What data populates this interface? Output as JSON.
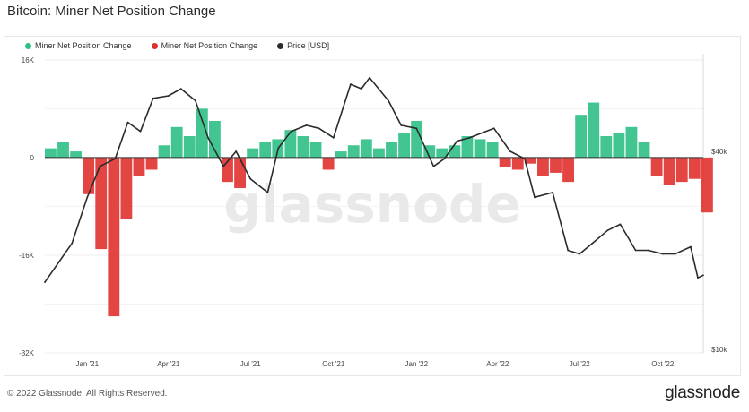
{
  "title": "Bitcoin: Miner Net Position Change",
  "footer": "© 2022 Glassnode. All Rights Reserved.",
  "brand": "glassnode",
  "watermark": "glassnode",
  "colors": {
    "positive": "#2fbf86",
    "negative": "#e0312f",
    "price": "#2b2b2b",
    "grid": "#ececec"
  },
  "legend": [
    {
      "label": "Miner Net Position Change",
      "color": "#2fbf86"
    },
    {
      "label": "Miner Net Position Change",
      "color": "#e0312f"
    },
    {
      "label": "Price [USD]",
      "color": "#2b2b2b"
    }
  ],
  "chart_data": {
    "type": "bar",
    "title": "Bitcoin: Miner Net Position Change",
    "y_left_ticks": [
      "16K",
      "0",
      "-16K",
      "-32K"
    ],
    "y_left_tick_values": [
      16000,
      0,
      -16000,
      -32000
    ],
    "y_left_range": [
      -32000,
      17000
    ],
    "y_right_ticks": [
      "$40k",
      "$10k"
    ],
    "y_right_tick_values": [
      40000,
      10000
    ],
    "y_right_scale": "log",
    "x_ticks": [
      "Jan '21",
      "Apr '21",
      "Jul '21",
      "Oct '21",
      "Jan '22",
      "Apr '22",
      "Jul '22",
      "Oct '22"
    ],
    "x_range": [
      "2020-11-15",
      "2022-11-15"
    ],
    "grid": true,
    "legend_placement": "top-left",
    "series": [
      {
        "name": "Miner Net Position Change",
        "type": "bar",
        "x": [
          "2020-11-15",
          "2020-11-29",
          "2020-12-13",
          "2020-12-27",
          "2021-01-10",
          "2021-01-24",
          "2021-02-07",
          "2021-02-21",
          "2021-03-07",
          "2021-03-21",
          "2021-04-04",
          "2021-04-18",
          "2021-05-02",
          "2021-05-16",
          "2021-05-30",
          "2021-06-13",
          "2021-06-27",
          "2021-07-11",
          "2021-07-25",
          "2021-08-08",
          "2021-08-22",
          "2021-09-05",
          "2021-09-19",
          "2021-10-03",
          "2021-10-17",
          "2021-10-31",
          "2021-11-14",
          "2021-11-28",
          "2021-12-12",
          "2021-12-26",
          "2022-01-09",
          "2022-01-23",
          "2022-02-06",
          "2022-02-20",
          "2022-03-06",
          "2022-03-20",
          "2022-04-03",
          "2022-04-17",
          "2022-05-01",
          "2022-05-15",
          "2022-05-29",
          "2022-06-12",
          "2022-06-26",
          "2022-07-10",
          "2022-07-24",
          "2022-08-07",
          "2022-08-21",
          "2022-09-04",
          "2022-09-18",
          "2022-10-02",
          "2022-10-16",
          "2022-10-30",
          "2022-11-13"
        ],
        "values": [
          1500,
          2500,
          1000,
          -6000,
          -15000,
          -26000,
          -10000,
          -3000,
          -2000,
          2000,
          5000,
          3500,
          8000,
          6000,
          -4000,
          -5000,
          1500,
          2500,
          3000,
          4500,
          3500,
          2500,
          -2000,
          1000,
          2000,
          3000,
          1500,
          2500,
          4000,
          6000,
          2000,
          1500,
          2000,
          3500,
          3000,
          2500,
          -1500,
          -2000,
          -1000,
          -3000,
          -2500,
          -4000,
          7000,
          9000,
          3500,
          4000,
          5000,
          2500,
          -3000,
          -4500,
          -4000,
          -3500,
          -9000
        ]
      },
      {
        "name": "Price [USD]",
        "type": "line",
        "x": [
          "2020-11-15",
          "2020-12-01",
          "2020-12-15",
          "2021-01-01",
          "2021-01-15",
          "2021-02-01",
          "2021-02-15",
          "2021-03-01",
          "2021-03-15",
          "2021-04-01",
          "2021-04-15",
          "2021-05-01",
          "2021-05-15",
          "2021-06-01",
          "2021-06-15",
          "2021-07-01",
          "2021-07-20",
          "2021-08-01",
          "2021-08-15",
          "2021-09-01",
          "2021-09-15",
          "2021-10-01",
          "2021-10-20",
          "2021-11-01",
          "2021-11-10",
          "2021-12-01",
          "2021-12-15",
          "2022-01-01",
          "2022-01-20",
          "2022-02-01",
          "2022-02-15",
          "2022-03-01",
          "2022-03-28",
          "2022-04-15",
          "2022-05-01",
          "2022-05-12",
          "2022-06-01",
          "2022-06-18",
          "2022-07-01",
          "2022-07-15",
          "2022-08-01",
          "2022-08-15",
          "2022-09-01",
          "2022-09-15",
          "2022-10-01",
          "2022-10-15",
          "2022-11-01",
          "2022-11-09",
          "2022-11-15"
        ],
        "values": [
          16000,
          18500,
          21000,
          29000,
          36000,
          38000,
          49000,
          46000,
          58000,
          59000,
          62000,
          57000,
          44000,
          36000,
          40000,
          33000,
          30000,
          41000,
          46000,
          48000,
          47000,
          44000,
          64000,
          62000,
          67000,
          57000,
          48000,
          47000,
          36000,
          38000,
          43000,
          44000,
          47000,
          40000,
          38000,
          29000,
          30000,
          20000,
          19500,
          21000,
          23000,
          24000,
          20000,
          20000,
          19500,
          19500,
          20500,
          16500,
          16800
        ]
      }
    ]
  }
}
